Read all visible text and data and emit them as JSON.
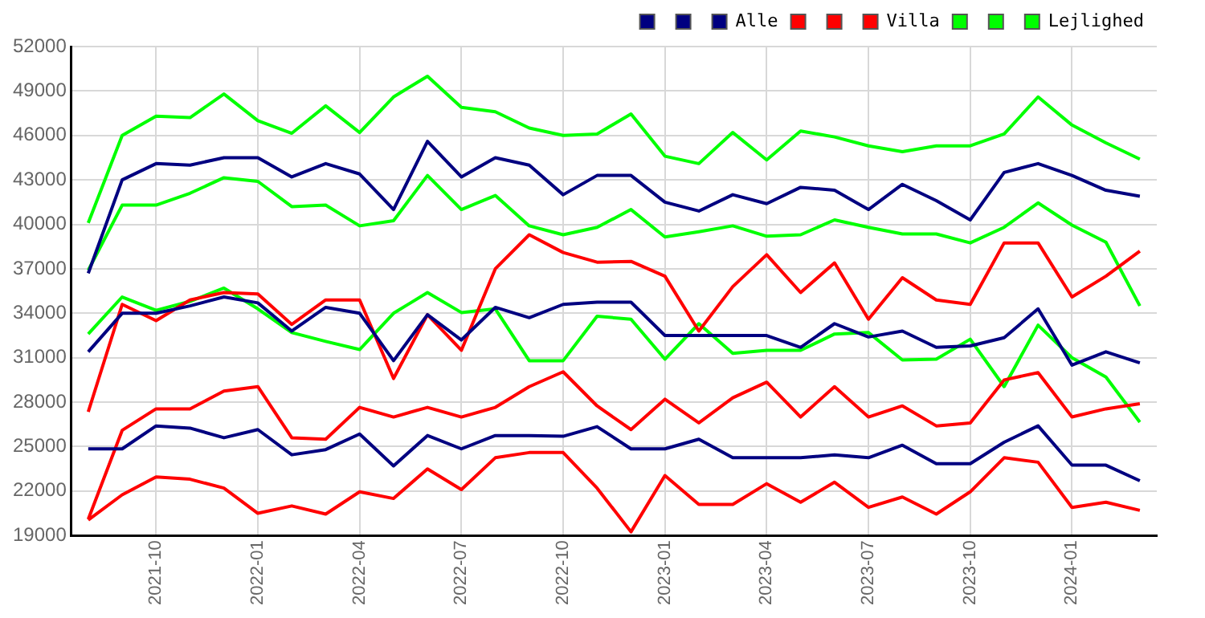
{
  "chart_data": {
    "type": "line",
    "x": [
      "2021-08",
      "2021-09",
      "2021-10",
      "2021-11",
      "2021-12",
      "2022-01",
      "2022-02",
      "2022-03",
      "2022-04",
      "2022-05",
      "2022-06",
      "2022-07",
      "2022-08",
      "2022-09",
      "2022-10",
      "2022-11",
      "2022-12",
      "2023-01",
      "2023-02",
      "2023-03",
      "2023-04",
      "2023-05",
      "2023-06",
      "2023-07",
      "2023-08",
      "2023-09",
      "2023-10",
      "2023-11",
      "2023-12",
      "2024-01",
      "2024-02",
      "2024-03"
    ],
    "series": [
      {
        "color": "#000080",
        "values": [
          36700,
          43000,
          44100,
          44000,
          44500,
          44500,
          43200,
          44100,
          43400,
          41000,
          45600,
          43200,
          44500,
          44000,
          42000,
          43300,
          43300,
          41500,
          40900,
          42000,
          41400,
          42500,
          42300,
          41000,
          42700,
          41600,
          40300,
          43500,
          44100,
          43300,
          42300,
          41900
        ]
      },
      {
        "color": "#000080",
        "values": [
          24850,
          24850,
          26400,
          26250,
          25600,
          26150,
          24450,
          24800,
          25850,
          23700,
          25750,
          24850,
          25750,
          25750,
          25700,
          26350,
          24850,
          24850,
          25500,
          24250,
          24250,
          24250,
          24450,
          24250,
          25100,
          23850,
          23850,
          25300,
          26400,
          23750,
          23750,
          22700
        ]
      },
      {
        "name": "Alle",
        "color": "#000080",
        "values": [
          31400,
          34000,
          34000,
          34500,
          35100,
          34700,
          32800,
          34400,
          34000,
          30800,
          33900,
          32200,
          34400,
          33700,
          34600,
          34750,
          34750,
          32500,
          32500,
          32500,
          32500,
          31700,
          33300,
          32400,
          32800,
          31700,
          31800,
          32350,
          34300,
          30500,
          31400,
          30650
        ]
      },
      {
        "color": "#ff0000",
        "values": [
          27350,
          34600,
          33500,
          34900,
          35400,
          35300,
          33250,
          34900,
          34900,
          29600,
          33900,
          31500,
          37000,
          39300,
          38100,
          37450,
          37500,
          36500,
          32800,
          35800,
          37950,
          35400,
          37400,
          33600,
          36400,
          34900,
          34600,
          38750,
          38750,
          35100,
          36500,
          38200
        ]
      },
      {
        "color": "#ff0000",
        "values": [
          20050,
          21750,
          22950,
          22800,
          22200,
          20500,
          21000,
          20450,
          21950,
          21500,
          23500,
          22100,
          24250,
          24600,
          24600,
          22200,
          19250,
          23050,
          21100,
          21100,
          22500,
          21250,
          22600,
          20900,
          21600,
          20450,
          21950,
          24250,
          23950,
          20900,
          21250,
          20700
        ]
      },
      {
        "name": "Villa",
        "color": "#ff0000",
        "values": [
          20100,
          26100,
          27550,
          27550,
          28750,
          29050,
          25600,
          25500,
          27650,
          27000,
          27650,
          27000,
          27650,
          29050,
          30050,
          27750,
          26150,
          28200,
          26600,
          28300,
          29350,
          27000,
          29050,
          27000,
          27750,
          26400,
          26600,
          29500,
          30000,
          27000,
          27550,
          27900
        ]
      },
      {
        "color": "#00ff00",
        "values": [
          40100,
          46000,
          47300,
          47200,
          48800,
          47000,
          46150,
          48000,
          46200,
          48600,
          50000,
          47900,
          47600,
          46500,
          46000,
          46100,
          47450,
          44600,
          44100,
          46200,
          44350,
          46300,
          45900,
          45300,
          44900,
          45300,
          45300,
          46100,
          48600,
          46700,
          45500,
          44400
        ]
      },
      {
        "color": "#00ff00",
        "values": [
          32600,
          35100,
          34200,
          34800,
          35700,
          34300,
          32700,
          32100,
          31550,
          34000,
          35400,
          34050,
          34300,
          30800,
          30800,
          33800,
          33600,
          30900,
          33300,
          31300,
          31500,
          31500,
          32600,
          32700,
          30850,
          30900,
          32250,
          29050,
          33200,
          31000,
          29700,
          26650
        ]
      },
      {
        "name": "Lejlighed",
        "color": "#00ff00",
        "values": [
          36900,
          41300,
          41300,
          42100,
          43150,
          42900,
          41200,
          41300,
          39900,
          40250,
          43300,
          41000,
          41950,
          39900,
          39300,
          39800,
          41000,
          39150,
          39500,
          39900,
          39200,
          39300,
          40300,
          39800,
          39350,
          39350,
          38750,
          39800,
          41450,
          39950,
          38800,
          34500
        ]
      }
    ],
    "xlim": [
      "2021-07-16",
      "2024-03-16"
    ],
    "xticks": [
      "2021-10",
      "2022-01",
      "2022-04",
      "2022-07",
      "2022-10",
      "2023-01",
      "2023-04",
      "2023-07",
      "2023-10",
      "2024-01"
    ],
    "ylim": [
      19000,
      52000
    ],
    "yticks": [
      19000,
      22000,
      25000,
      28000,
      31000,
      34000,
      37000,
      40000,
      43000,
      46000,
      49000,
      52000
    ],
    "grid": true,
    "legend": "top right",
    "marker": "none",
    "line_style": "solid"
  }
}
